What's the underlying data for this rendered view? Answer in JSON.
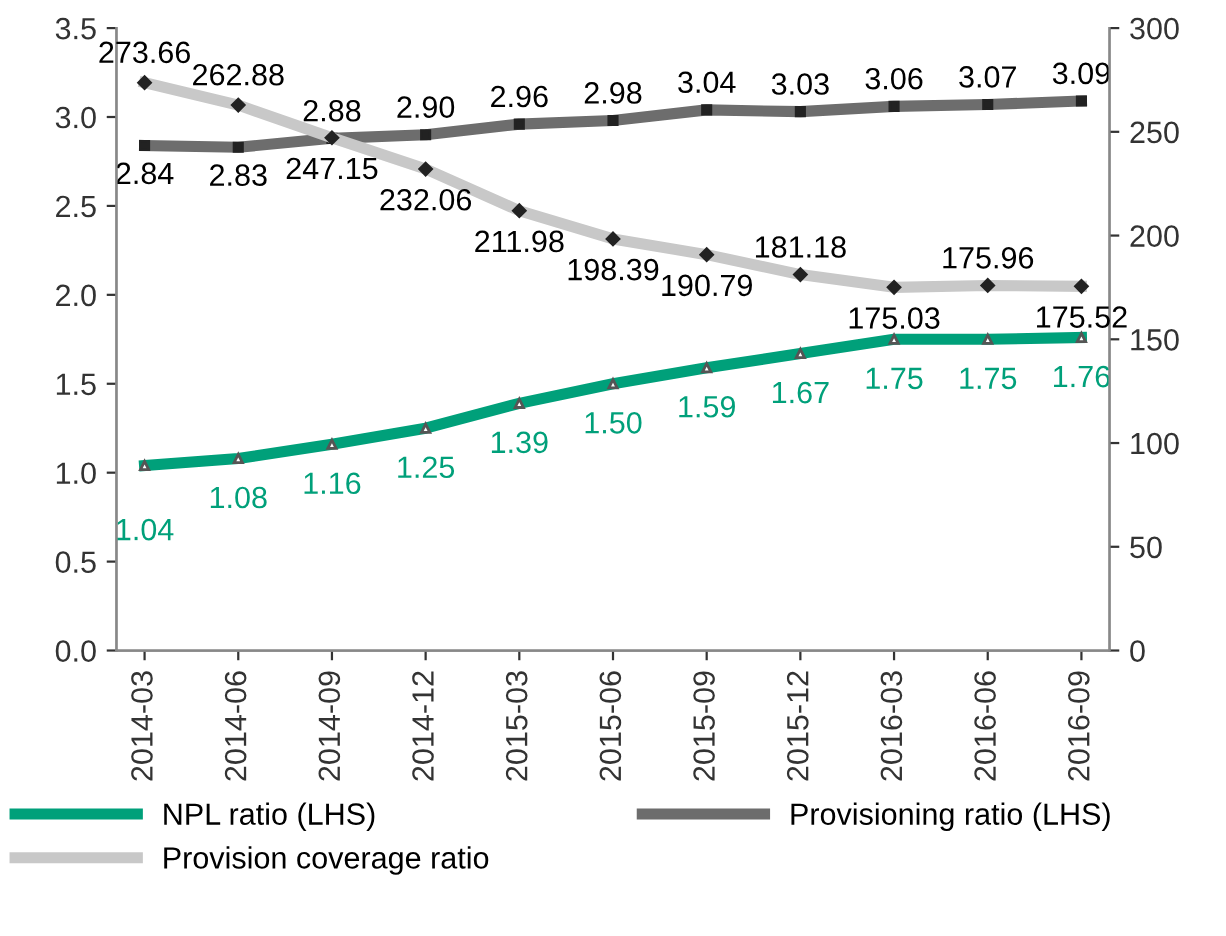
{
  "chart_data": {
    "type": "line",
    "categories": [
      "2014-03",
      "2014-06",
      "2014-09",
      "2014-12",
      "2015-03",
      "2015-06",
      "2015-09",
      "2015-12",
      "2016-03",
      "2016-06",
      "2016-09"
    ],
    "series": [
      {
        "name": "NPL ratio (LHS)",
        "color": "#00a07a",
        "marker": "triangle",
        "values": [
          1.04,
          1.08,
          1.16,
          1.25,
          1.39,
          1.5,
          1.59,
          1.67,
          1.75,
          1.75,
          1.76
        ],
        "value_labels": [
          "1.04",
          "1.08",
          "1.16",
          "1.25",
          "1.39",
          "1.50",
          "1.59",
          "1.67",
          "1.75",
          "1.75",
          "1.76"
        ]
      },
      {
        "name": "Provisioning ratio (LHS)",
        "color": "#6d6d6d",
        "marker": "square",
        "values": [
          2.84,
          2.83,
          2.88,
          2.9,
          2.96,
          2.98,
          3.04,
          3.03,
          3.06,
          3.07,
          3.09
        ],
        "value_labels": [
          "2.84",
          "2.83",
          "2.88",
          "2.90",
          "2.96",
          "2.98",
          "3.04",
          "3.03",
          "3.06",
          "3.07",
          "3.09"
        ]
      },
      {
        "name": "Provision coverage ratio",
        "color": "#c8c8c8",
        "marker": "diamond",
        "axis": "y2",
        "values": [
          273.66,
          262.88,
          247.15,
          232.06,
          211.98,
          198.39,
          190.79,
          181.18,
          175.03,
          175.96,
          175.52
        ],
        "value_labels": [
          "273.66",
          "262.88",
          "247.15",
          "232.06",
          "211.98",
          "198.39",
          "190.79",
          "181.18",
          "175.03",
          "175.96",
          "175.52"
        ]
      }
    ],
    "ylim": [
      0,
      3.5
    ],
    "yticks": [
      {
        "value": 0,
        "label": "0.0"
      },
      {
        "value": 0.5,
        "label": "0.5"
      },
      {
        "value": 1,
        "label": "1.0"
      },
      {
        "value": 1.5,
        "label": "1.5"
      },
      {
        "value": 2,
        "label": "2.0"
      },
      {
        "value": 2.5,
        "label": "2.5"
      },
      {
        "value": 3,
        "label": "3.0"
      },
      {
        "value": 3.5,
        "label": "3.5"
      }
    ],
    "y2lim": [
      0,
      300
    ],
    "y2ticks": [
      0,
      50,
      100,
      150,
      200,
      250,
      300
    ],
    "legend": "bottom",
    "grid": false
  }
}
